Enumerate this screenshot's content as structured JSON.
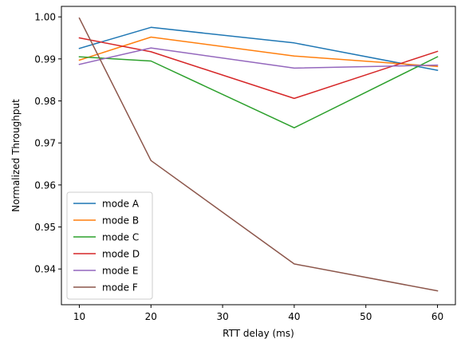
{
  "chart_data": {
    "type": "line",
    "xlabel": "RTT delay (ms)",
    "ylabel": "Normalized Throughput",
    "x": [
      10,
      20,
      40,
      60
    ],
    "xlim": [
      7.5,
      62.5
    ],
    "ylim": [
      0.9315,
      1.0025
    ],
    "xticks": [
      10,
      20,
      30,
      40,
      50,
      60
    ],
    "yticks": [
      0.94,
      0.95,
      0.96,
      0.97,
      0.98,
      0.99,
      1.0
    ],
    "ytick_labels": [
      "0.94",
      "0.95",
      "0.96",
      "0.97",
      "0.98",
      "0.99",
      "1.00"
    ],
    "grid": false,
    "legend_position": "lower-left",
    "series": [
      {
        "name": "mode A",
        "color": "#1f77b4",
        "values": [
          0.9925,
          0.9975,
          0.9938,
          0.9873
        ]
      },
      {
        "name": "mode B",
        "color": "#ff7f0e",
        "values": [
          0.9897,
          0.9952,
          0.9907,
          0.9882
        ]
      },
      {
        "name": "mode C",
        "color": "#2ca02c",
        "values": [
          0.9905,
          0.9895,
          0.9736,
          0.9905
        ]
      },
      {
        "name": "mode D",
        "color": "#d62728",
        "values": [
          0.995,
          0.9917,
          0.9806,
          0.9918
        ]
      },
      {
        "name": "mode E",
        "color": "#9467bd",
        "values": [
          0.9887,
          0.9926,
          0.9878,
          0.9885
        ]
      },
      {
        "name": "mode F",
        "color": "#8c564b",
        "values": [
          0.9997,
          0.9658,
          0.9412,
          0.9348
        ]
      }
    ]
  }
}
